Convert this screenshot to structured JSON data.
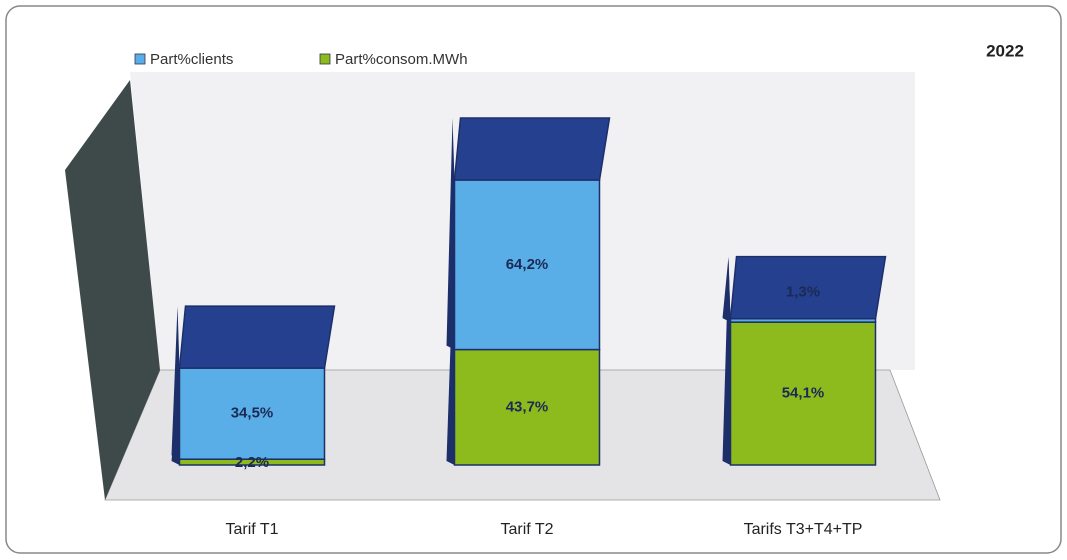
{
  "chart_data": {
    "type": "bar3d_stacked",
    "title": "2022",
    "categories": [
      "Tarif T1",
      "Tarif T2",
      "Tarifs T3+T4+TP"
    ],
    "series": [
      {
        "name": "Part%consom.MWh",
        "color": "#8dbb1d",
        "values": [
          2.2,
          43.7,
          54.1
        ],
        "value_labels": [
          "2,2%",
          "43,7%",
          "54,1%"
        ]
      },
      {
        "name": "Part%clients",
        "color": "#5aaee8",
        "values": [
          34.5,
          64.2,
          1.3
        ],
        "value_labels": [
          "34,5%",
          "64,2%",
          "1,3%"
        ]
      }
    ],
    "legend_order": [
      1,
      0
    ]
  }
}
